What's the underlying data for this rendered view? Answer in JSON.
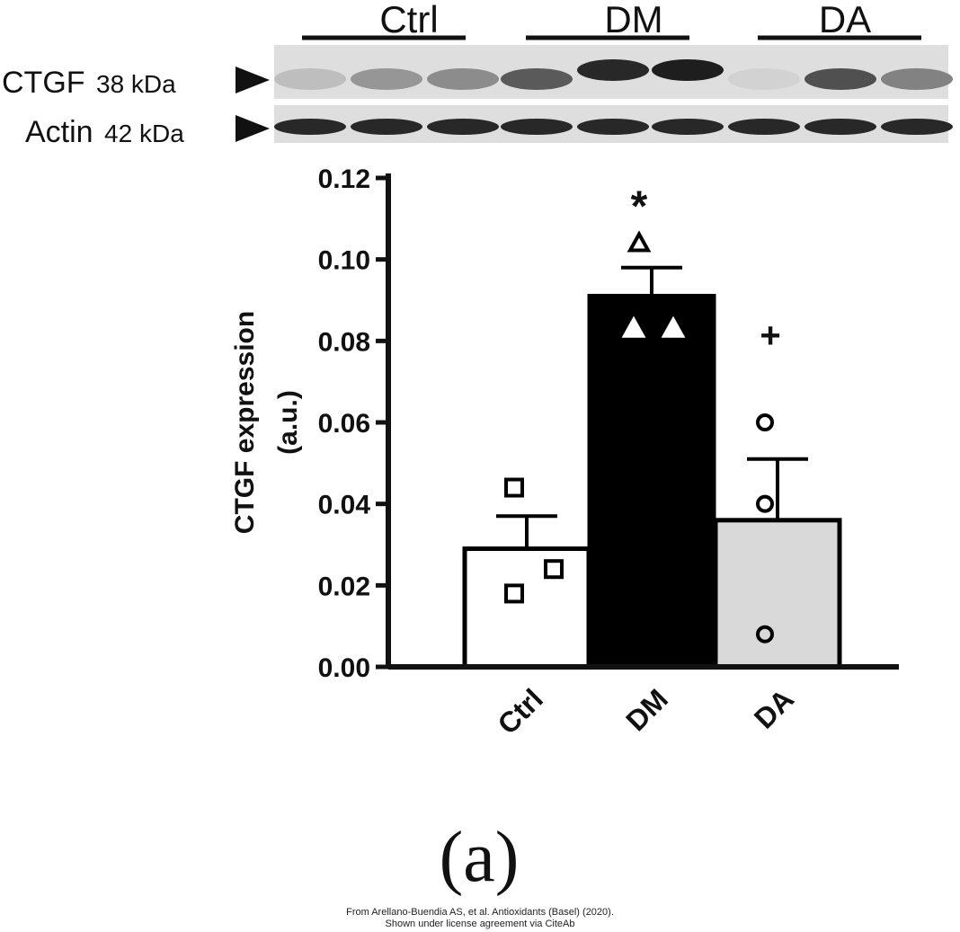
{
  "blot": {
    "groups": [
      "Ctrl",
      "DM",
      "DA"
    ],
    "rows": [
      {
        "protein": "CTGF",
        "kda": "38 kDa",
        "band_intensity": [
          0.15,
          0.35,
          0.4,
          0.65,
          0.9,
          0.95,
          0.05,
          0.7,
          0.45
        ]
      },
      {
        "protein": "Actin",
        "kda": "42 kDa",
        "band_intensity": [
          0.9,
          0.9,
          0.9,
          0.9,
          0.9,
          0.9,
          0.9,
          0.9,
          0.9
        ]
      }
    ]
  },
  "chart_data": {
    "type": "bar",
    "categories": [
      "Ctrl",
      "DM",
      "DA"
    ],
    "values": [
      0.029,
      0.091,
      0.036
    ],
    "errors": [
      0.008,
      0.007,
      0.015
    ],
    "points": [
      [
        0.044,
        0.024,
        0.018
      ],
      [
        0.104,
        0.083,
        0.083
      ],
      [
        0.06,
        0.04,
        0.008
      ]
    ],
    "markers": [
      "square",
      "triangle",
      "circle"
    ],
    "bar_colors": [
      "#ffffff",
      "#000000",
      "#d9d9d9"
    ],
    "ylabel_line1": "CTGF expression",
    "ylabel_line2": "(a.u.)",
    "ylim": [
      0,
      0.12
    ],
    "yticks": [
      "0.00",
      "0.02",
      "0.04",
      "0.06",
      "0.08",
      "0.10",
      "0.12"
    ],
    "significance": [
      {
        "category": "DM",
        "symbol": "*",
        "y": 0.113
      },
      {
        "category": "DA",
        "symbol": "+",
        "y": 0.082
      }
    ]
  },
  "panel_label": "(a)",
  "credit": {
    "line1": "From Arellano-Buendia AS, et al. Antioxidants (Basel) (2020).",
    "line2": "Shown under license agreement via CiteAb"
  }
}
